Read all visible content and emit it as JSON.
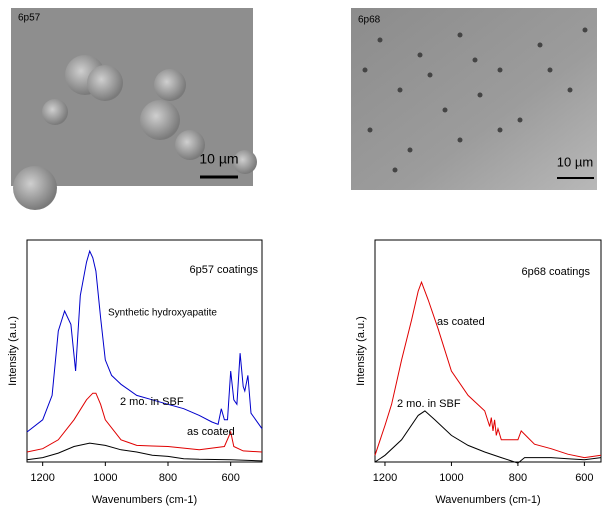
{
  "images": [
    {
      "label": "6p57",
      "scale": "10 µm"
    },
    {
      "label": "6p68",
      "scale": "10 µm"
    }
  ],
  "chart_data": [
    {
      "type": "line",
      "title": "6p57 coatings",
      "xlabel": "Wavenumbers (cm-1)",
      "ylabel": "Intensity (a.u.)",
      "xlim": [
        1250,
        500
      ],
      "xticks": [
        1200,
        1000,
        800,
        600
      ],
      "ylim": [
        0,
        10
      ],
      "annotations": [
        "Synthetic hydroxyapatite",
        "2 mo. in SBF",
        "as coated"
      ],
      "series": [
        {
          "name": "Synthetic hydroxyapatite",
          "color": "#0000cc",
          "x": [
            1250,
            1200,
            1170,
            1150,
            1130,
            1110,
            1095,
            1080,
            1060,
            1050,
            1040,
            1030,
            1015,
            1000,
            980,
            950,
            900,
            850,
            800,
            750,
            700,
            660,
            640,
            630,
            620,
            610,
            600,
            590,
            580,
            570,
            560,
            555,
            545,
            535,
            520,
            500
          ],
          "values": [
            1.35,
            1.9,
            3.0,
            5.9,
            6.8,
            6.2,
            4.1,
            7.5,
            9.0,
            9.5,
            9.2,
            8.6,
            6.5,
            4.6,
            3.9,
            3.5,
            3.0,
            2.8,
            2.6,
            2.4,
            2.1,
            1.8,
            1.7,
            2.4,
            1.9,
            1.9,
            4.1,
            2.8,
            2.6,
            4.9,
            3.4,
            3.2,
            3.9,
            2.2,
            1.9,
            1.5
          ]
        },
        {
          "name": "2 mo. in SBF",
          "color": "#e00000",
          "x": [
            1250,
            1200,
            1150,
            1100,
            1060,
            1040,
            1030,
            1015,
            1000,
            950,
            900,
            850,
            800,
            700,
            620,
            600,
            590,
            560,
            500
          ],
          "values": [
            0.45,
            0.6,
            1.0,
            1.9,
            2.8,
            3.1,
            3.1,
            2.6,
            1.9,
            1.0,
            0.75,
            0.72,
            0.7,
            0.55,
            0.7,
            1.35,
            0.7,
            0.5,
            0.45
          ]
        },
        {
          "name": "as coated",
          "color": "#000000",
          "x": [
            1250,
            1200,
            1150,
            1100,
            1050,
            1000,
            950,
            900,
            850,
            800,
            750,
            700,
            600,
            500
          ],
          "values": [
            0.1,
            0.2,
            0.4,
            0.7,
            0.85,
            0.75,
            0.55,
            0.45,
            0.3,
            0.25,
            0.15,
            0.12,
            0.1,
            0.05
          ]
        }
      ]
    },
    {
      "type": "line",
      "title": "6p68 coatings",
      "xlabel": "Wavenumbers (cm-1)",
      "ylabel": "Intensity (a.u.)",
      "xlim": [
        1230,
        550
      ],
      "xticks": [
        1200,
        1000,
        800,
        600
      ],
      "ylim": [
        0,
        10
      ],
      "annotations": [
        "as coated",
        "2 mo. in SBF"
      ],
      "series": [
        {
          "name": "as coated",
          "color": "#e00000",
          "x": [
            1230,
            1200,
            1180,
            1150,
            1120,
            1100,
            1090,
            1070,
            1040,
            1000,
            950,
            900,
            885,
            880,
            875,
            870,
            865,
            860,
            850,
            820,
            800,
            790,
            770,
            750,
            700,
            650,
            600,
            550
          ],
          "values": [
            0.3,
            1.65,
            2.6,
            4.6,
            6.4,
            7.7,
            8.1,
            7.3,
            6.0,
            4.1,
            3.0,
            2.3,
            1.6,
            2.0,
            1.4,
            1.9,
            1.2,
            1.5,
            1.0,
            1.0,
            1.0,
            1.4,
            1.1,
            0.8,
            0.6,
            0.35,
            0.2,
            0.3
          ]
        },
        {
          "name": "2 mo. in SBF",
          "color": "#000000",
          "x": [
            1230,
            1200,
            1150,
            1100,
            1080,
            1050,
            1000,
            950,
            900,
            850,
            800,
            780,
            750,
            700,
            650,
            600,
            550
          ],
          "values": [
            0.0,
            0.3,
            1.0,
            2.1,
            2.3,
            1.9,
            1.2,
            0.75,
            0.45,
            0.2,
            -0.05,
            0.2,
            0.2,
            0.2,
            0.15,
            0.1,
            0.2
          ]
        }
      ]
    }
  ]
}
